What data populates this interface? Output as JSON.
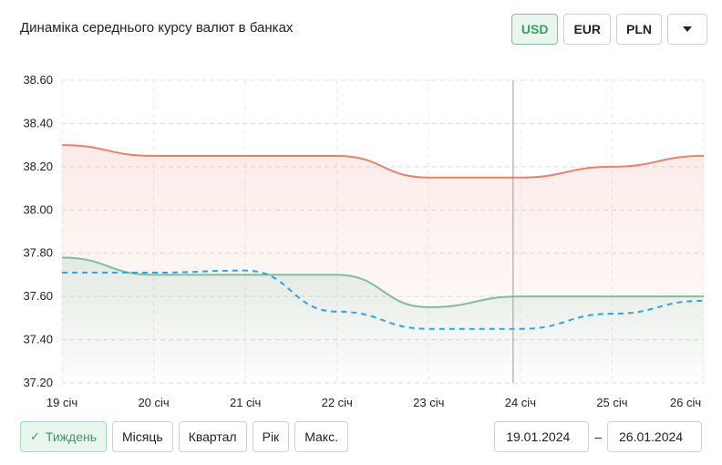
{
  "title": "Динаміка середнього курсу валют в банках",
  "currencies": [
    {
      "label": "USD",
      "active": true
    },
    {
      "label": "EUR",
      "active": false
    },
    {
      "label": "PLN",
      "active": false
    }
  ],
  "periods": [
    {
      "label": "Тиждень",
      "active": true
    },
    {
      "label": "Місяць",
      "active": false
    },
    {
      "label": "Квартал",
      "active": false
    },
    {
      "label": "Рік",
      "active": false
    },
    {
      "label": "Макс.",
      "active": false
    }
  ],
  "date_from": "19.01.2024",
  "date_to": "26.01.2024",
  "date_separator": "–",
  "icons": {
    "dropdown": "chevron-down-icon",
    "check": "check-icon"
  },
  "chart_data": {
    "type": "line",
    "categories": [
      "19 січ",
      "20 січ",
      "21 січ",
      "22 січ",
      "23 січ",
      "24 січ",
      "25 січ",
      "26 січ"
    ],
    "ylim": [
      37.2,
      38.6
    ],
    "yticks": [
      "38.60",
      "38.40",
      "38.20",
      "38.00",
      "37.80",
      "37.60",
      "37.40",
      "37.20"
    ],
    "grid": true,
    "crosshair_category": "24 січ",
    "series": [
      {
        "style": "solid",
        "fill": true,
        "color": "#e8826b",
        "values": [
          38.3,
          38.25,
          38.25,
          38.25,
          38.15,
          38.15,
          38.2,
          38.25
        ]
      },
      {
        "style": "solid",
        "fill": true,
        "color": "#7fbda0",
        "values": [
          37.78,
          37.7,
          37.7,
          37.7,
          37.55,
          37.6,
          37.6,
          37.6
        ]
      },
      {
        "style": "dashed",
        "fill": false,
        "color": "#2aa5e8",
        "values": [
          37.71,
          37.71,
          37.72,
          37.53,
          37.45,
          37.45,
          37.52,
          37.58
        ]
      }
    ]
  }
}
